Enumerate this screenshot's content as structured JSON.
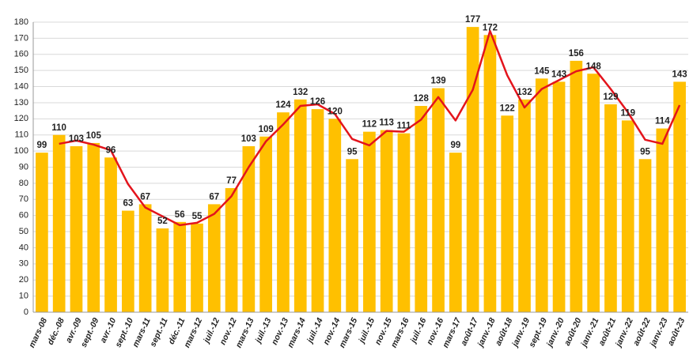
{
  "chart_data": {
    "type": "bar",
    "categories": [
      "mars-08",
      "déc.-08",
      "avr.-09",
      "sept.-09",
      "avr.-10",
      "sept.-10",
      "mars-11",
      "sept.-11",
      "déc.-11",
      "mars-12",
      "juil.-12",
      "nov.-12",
      "mars-13",
      "juil.-13",
      "nov.-13",
      "mars-14",
      "juil.-14",
      "nov.-14",
      "mars-15",
      "juil.-15",
      "nov.-15",
      "mars-16",
      "juil.-16",
      "nov.-16",
      "mars-17",
      "août-17",
      "janv.-18",
      "août-18",
      "janv.-19",
      "sept.-19",
      "janv.-20",
      "août-20",
      "janv.-21",
      "août-21",
      "janv.-22",
      "août-22",
      "janv.-23",
      "août-23"
    ],
    "series": [
      {
        "color": "#ffc000",
        "values": [
          99,
          110,
          103,
          105,
          96,
          63,
          67,
          52,
          56,
          55,
          67,
          77,
          103,
          109,
          124,
          132,
          126,
          120,
          95,
          112,
          113,
          111,
          128,
          139,
          99,
          177,
          172,
          122,
          132,
          145,
          143,
          156,
          148,
          129,
          119,
          95,
          114,
          143
        ]
      },
      {
        "color": "#e3141c",
        "values": [
          null,
          104.5,
          106.5,
          104,
          100.5,
          79.5,
          65,
          59.5,
          54,
          55.5,
          61,
          72,
          90,
          106,
          116.5,
          128,
          129,
          123,
          107.5,
          103.5,
          112.5,
          112,
          119.5,
          133.5,
          119,
          138,
          174.5,
          147,
          127,
          138.5,
          144,
          149.5,
          152,
          138.5,
          124,
          107,
          104.5,
          128.5
        ]
      }
    ],
    "ylim": [
      0,
      180
    ],
    "yticks": [
      0,
      10,
      20,
      30,
      40,
      50,
      60,
      70,
      80,
      90,
      100,
      110,
      120,
      130,
      140,
      150,
      160,
      170,
      180
    ],
    "grid": true
  }
}
